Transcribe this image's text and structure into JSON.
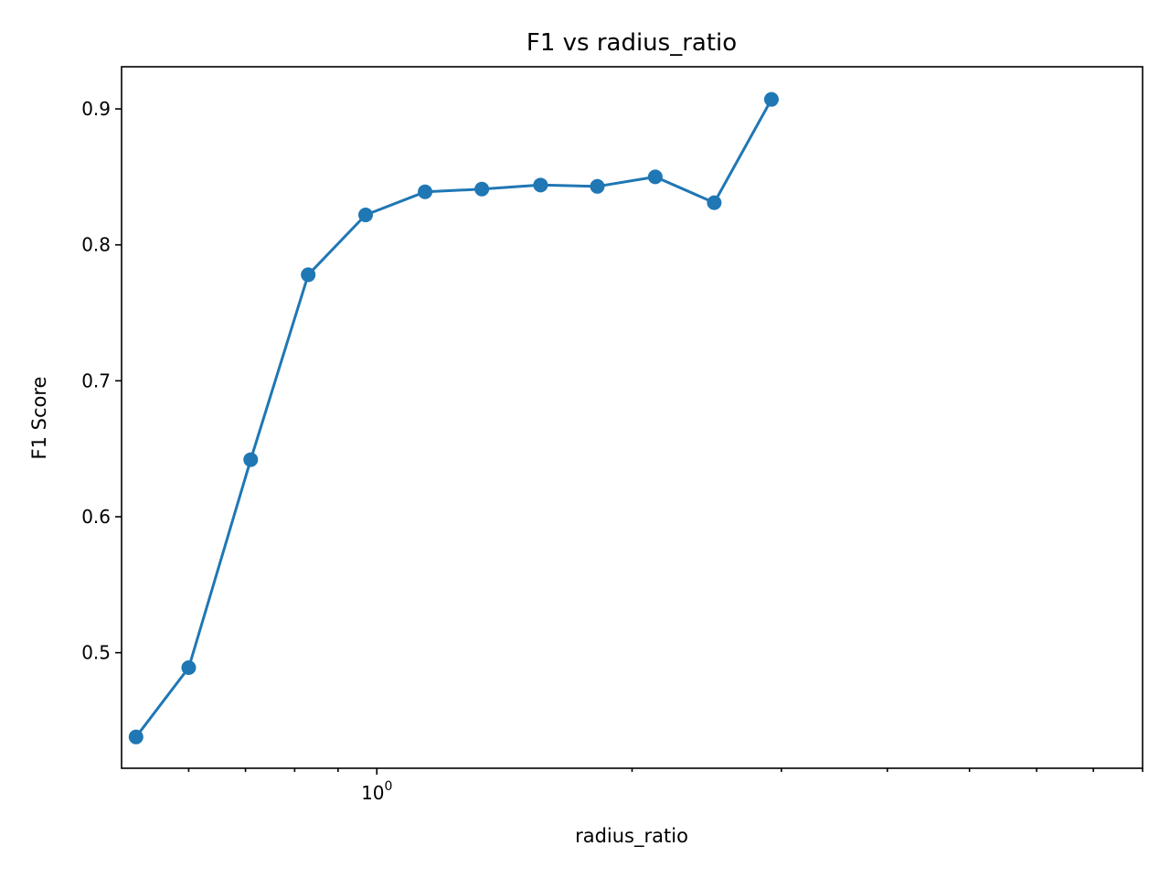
{
  "chart_data": {
    "type": "line",
    "title": "F1 vs radius_ratio",
    "xlabel": "radius_ratio",
    "ylabel": "F1 Score",
    "x_scale": "log",
    "xlim": [
      0.5,
      8.0
    ],
    "ylim": [
      0.415,
      0.931
    ],
    "x_major_ticks": [
      {
        "value": 1,
        "base": "10",
        "exp": "0"
      }
    ],
    "x_minor_ticks": [
      0.6,
      0.7,
      0.8,
      0.9,
      2,
      3,
      4,
      5,
      6,
      7,
      8
    ],
    "y_ticks": [
      0.5,
      0.6,
      0.7,
      0.8,
      0.9
    ],
    "grid": false,
    "color": "#1f77b4",
    "series": [
      {
        "x": [
          0.52,
          0.6,
          0.71,
          0.83,
          0.97,
          1.14,
          1.33,
          1.56,
          1.82,
          2.13,
          2.5,
          2.92
        ],
        "y": [
          0.438,
          0.489,
          0.642,
          0.778,
          0.822,
          0.839,
          0.841,
          0.844,
          0.843,
          0.85,
          0.831,
          0.907
        ]
      }
    ]
  }
}
